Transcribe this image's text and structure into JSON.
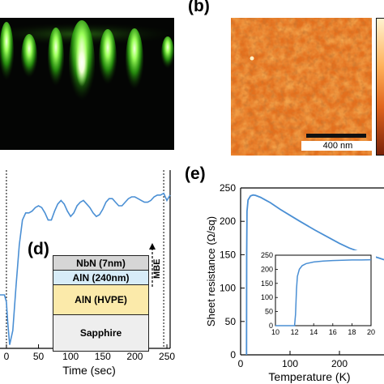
{
  "panels": {
    "b": {
      "letter": "(b)",
      "scalebar_label": "400 nm"
    },
    "d": {
      "letter": "(d)"
    },
    "e": {
      "letter": "(e)"
    }
  },
  "layer_stack": {
    "arrow_label": "MBE",
    "layers": [
      {
        "label": "NbN (7nm)",
        "color": "#d6d6d6"
      },
      {
        "label": "AlN (240nm)",
        "color": "#d7ecf8"
      },
      {
        "label": "AlN (HVPE)",
        "color": "#fbeaaa"
      },
      {
        "label": "Sapphire",
        "color": "#eeeeee"
      }
    ]
  },
  "chart_data": [
    {
      "type": "line",
      "panel": "(d)",
      "xlabel": "Time (sec)",
      "ylabel": "",
      "xlim": [
        -10,
        255
      ],
      "x_ticks": [
        "0",
        "50",
        "100",
        "150",
        "200",
        "250"
      ],
      "series": [
        {
          "color": "#4a8fd4",
          "x": [
            -10,
            -3,
            0,
            2,
            5,
            10,
            15,
            20,
            25,
            30,
            35,
            40,
            45,
            50,
            55,
            60,
            65,
            70,
            75,
            80,
            85,
            90,
            95,
            100,
            105,
            110,
            115,
            120,
            125,
            130,
            135,
            140,
            145,
            150,
            155,
            160,
            165,
            170,
            175,
            180,
            185,
            190,
            195,
            200,
            205,
            210,
            215,
            220,
            225,
            230,
            235,
            240,
            245,
            250,
            255
          ],
          "y": [
            0.3,
            0.3,
            0.26,
            0.15,
            0.02,
            0.1,
            0.35,
            0.58,
            0.72,
            0.76,
            0.76,
            0.77,
            0.79,
            0.8,
            0.79,
            0.76,
            0.72,
            0.72,
            0.77,
            0.81,
            0.83,
            0.81,
            0.77,
            0.74,
            0.76,
            0.8,
            0.82,
            0.83,
            0.81,
            0.79,
            0.76,
            0.74,
            0.75,
            0.78,
            0.82,
            0.84,
            0.84,
            0.82,
            0.8,
            0.8,
            0.82,
            0.84,
            0.85,
            0.85,
            0.84,
            0.83,
            0.82,
            0.82,
            0.83,
            0.85,
            0.86,
            0.86,
            0.87,
            0.83,
            0.86
          ]
        }
      ]
    },
    {
      "type": "line",
      "panel": "(e)",
      "xlabel": "Temperature (K)",
      "ylabel": "Sheet resistance (Ω/sq)",
      "xlim": [
        0,
        300
      ],
      "ylim": [
        0,
        250
      ],
      "x_ticks": [
        "0",
        "100",
        "200"
      ],
      "y_ticks": [
        "0",
        "50",
        "100",
        "150",
        "200",
        "250"
      ],
      "series": [
        {
          "color": "#4a8fd4",
          "x": [
            12.0,
            12.3,
            13,
            15,
            20,
            25,
            30,
            40,
            50,
            60,
            80,
            100,
            120,
            150,
            180,
            200,
            220,
            250,
            280,
            300
          ],
          "y": [
            0,
            150,
            215,
            232,
            238,
            239.5,
            239,
            236,
            232,
            228,
            218,
            209,
            200,
            187,
            175,
            167,
            160,
            152,
            145,
            140
          ]
        }
      ],
      "inset": {
        "xlim": [
          10,
          20
        ],
        "ylim": [
          0,
          250
        ],
        "x_ticks": [
          "10",
          "12",
          "14",
          "16",
          "18",
          "20"
        ],
        "y_ticks": [
          "0",
          "50",
          "100",
          "150",
          "200",
          "250"
        ],
        "x": [
          10,
          11,
          11.8,
          12.0,
          12.1,
          12.2,
          12.3,
          12.5,
          12.8,
          13.2,
          14,
          15,
          16,
          17,
          18,
          19,
          20
        ],
        "y": [
          0,
          0,
          0,
          0,
          40,
          130,
          175,
          200,
          213,
          220,
          226,
          229,
          231,
          232,
          233,
          233,
          234
        ]
      }
    }
  ]
}
